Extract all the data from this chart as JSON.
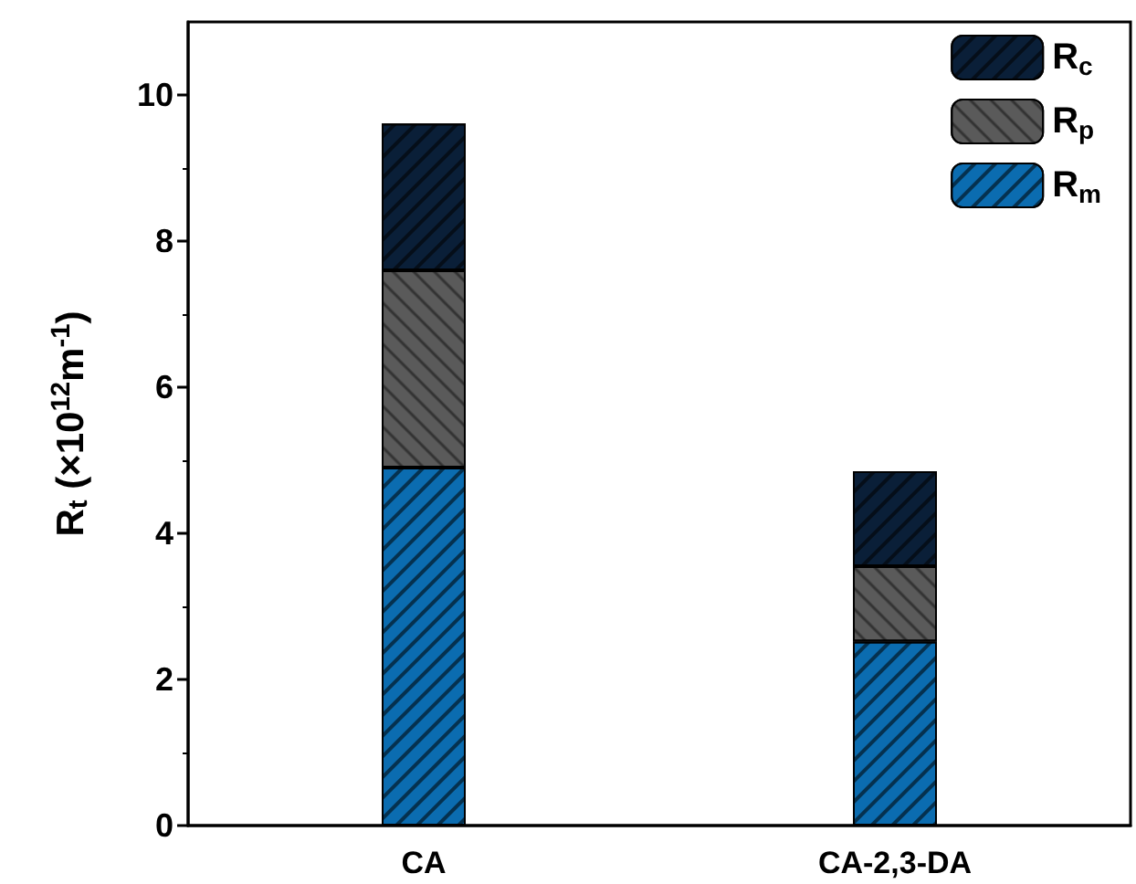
{
  "chart_data": {
    "type": "bar",
    "stacked": true,
    "ylabel": "R$_{t}$ (×10$^{12}$m$^{-1}$)",
    "categories": [
      "CA",
      "CA-2,3-DA"
    ],
    "series": [
      {
        "name": "R$_{m}$",
        "color": "#0b6cb0",
        "values": [
          4.9,
          2.52
        ]
      },
      {
        "name": "R$_{p}$",
        "color": "#5a5a5a",
        "values": [
          2.7,
          1.03
        ]
      },
      {
        "name": "R$_{c}$",
        "color": "#0a1f38",
        "values": [
          2.01,
          1.3
        ]
      }
    ],
    "ylim": [
      0,
      11
    ],
    "yticks": [
      0,
      2,
      4,
      6,
      8,
      10
    ],
    "grid": false,
    "legend": "top right"
  }
}
